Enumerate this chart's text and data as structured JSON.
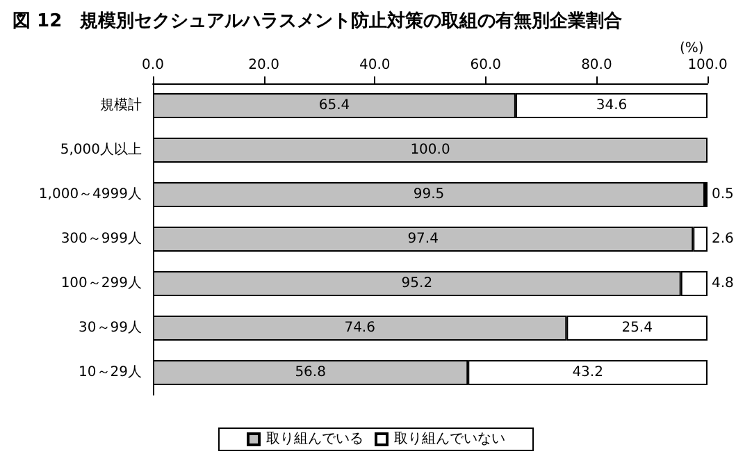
{
  "chart_data": {
    "type": "bar",
    "orientation": "horizontal",
    "stacked": true,
    "title": "図 12　規模別セクシュアルハラスメント防止対策の取組の有無別企業割合",
    "xlabel": "(%)",
    "categories": [
      "規模計",
      "5,000人以上",
      "1,000～4999人",
      "300～999人",
      "100～299人",
      "30～99人",
      "10～29人"
    ],
    "series": [
      {
        "name": "取り組んでいる",
        "color": "#c0c0c0",
        "values": [
          65.4,
          100.0,
          99.5,
          97.4,
          95.2,
          74.6,
          56.8
        ],
        "value_labels": [
          "65.4",
          "100.0",
          "99.5",
          "97.4",
          "95.2",
          "74.6",
          "56.8"
        ]
      },
      {
        "name": "取り組んでいない",
        "color": "#ffffff",
        "values": [
          34.6,
          null,
          0.5,
          2.6,
          4.8,
          25.4,
          43.2
        ],
        "value_labels": [
          "34.6",
          null,
          "0.5",
          "2.6",
          "4.8",
          "25.4",
          "43.2"
        ]
      }
    ],
    "xlim": [
      0,
      100
    ],
    "xticks": [
      {
        "value": 0,
        "label": "0.0"
      },
      {
        "value": 20,
        "label": "20.0"
      },
      {
        "value": 40,
        "label": "40.0"
      },
      {
        "value": 60,
        "label": "60.0"
      },
      {
        "value": 80,
        "label": "80.0"
      },
      {
        "value": 100,
        "label": "100.0"
      }
    ],
    "grid": false,
    "legend": "bottom"
  }
}
